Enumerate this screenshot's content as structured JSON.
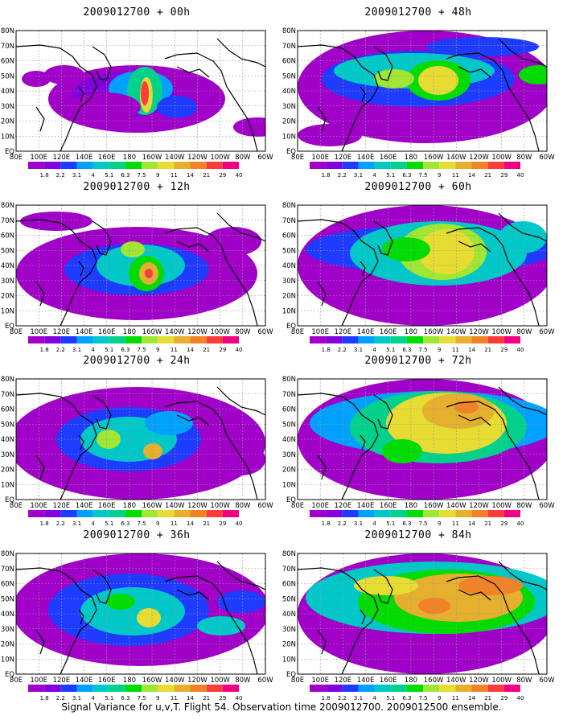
{
  "page": {
    "footer": "Signal Variance for u,v,T. Flight 54. Observation time 2009012700. 2009012500 ensemble."
  },
  "chart_data": {
    "type": "heatmap",
    "description_type": "filled-contour maps, 8 panels",
    "lon_ticks": [
      "80E",
      "100E",
      "120E",
      "140E",
      "160E",
      "180",
      "160W",
      "140W",
      "120W",
      "100W",
      "80W",
      "60W"
    ],
    "lat_ticks": [
      "EQ",
      "10N",
      "20N",
      "30N",
      "40N",
      "50N",
      "60N",
      "70N",
      "80N"
    ],
    "colorbar": {
      "levels": [
        "1.8",
        "2.2",
        "3.1",
        "4",
        "5.1",
        "6.3",
        "7.5",
        "9",
        "11",
        "14",
        "21",
        "29",
        "40"
      ],
      "colors": [
        "#a000c8",
        "#8200dc",
        "#1e3cff",
        "#00a0ff",
        "#00c8c8",
        "#00d28c",
        "#00dc00",
        "#a0e632",
        "#e6dc32",
        "#e6af2d",
        "#f08228",
        "#fa3c3c",
        "#f00082"
      ]
    },
    "panels": [
      {
        "title": "2009012700 + 00h",
        "lead_hours": 0
      },
      {
        "title": "2009012700 + 48h",
        "lead_hours": 48
      },
      {
        "title": "2009012700 + 12h",
        "lead_hours": 12
      },
      {
        "title": "2009012700 + 60h",
        "lead_hours": 60
      },
      {
        "title": "2009012700 + 24h",
        "lead_hours": 24
      },
      {
        "title": "2009012700 + 72h",
        "lead_hours": 72
      },
      {
        "title": "2009012700 + 36h",
        "lead_hours": 36
      },
      {
        "title": "2009012700 + 84h",
        "lead_hours": 84
      }
    ]
  }
}
